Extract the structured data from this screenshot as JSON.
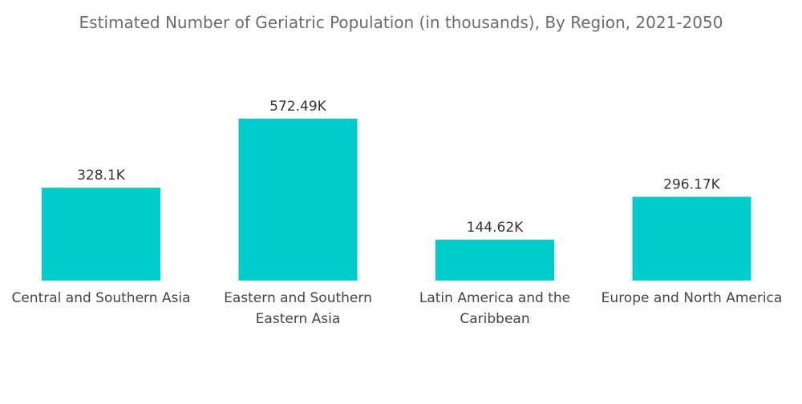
{
  "title": "Estimated Number of Geriatric Population (in thousands), By Region, 2021-2050",
  "colors": {
    "bar": "#00CCCC",
    "text": "#444444",
    "title": "#6b6b6b"
  },
  "chart_data": {
    "type": "bar",
    "title": "Estimated Number of Geriatric Population (in thousands), By Region, 2021-2050",
    "categories": [
      "Central and Southern Asia",
      "Eastern and Southern Eastern Asia",
      "Latin America and the Caribbean",
      "Europe and North America"
    ],
    "category_lines": [
      [
        "Central and Southern Asia"
      ],
      [
        "Eastern and Southern",
        "Eastern Asia"
      ],
      [
        "Latin America and the",
        "Caribbean"
      ],
      [
        "Europe and North America"
      ]
    ],
    "values": [
      328.1,
      572.49,
      144.62,
      296.17
    ],
    "data_labels": [
      "328.1K",
      "572.49K",
      "144.62K",
      "296.17K"
    ],
    "xlabel": "",
    "ylabel": "",
    "grid": false,
    "legend": "none"
  }
}
